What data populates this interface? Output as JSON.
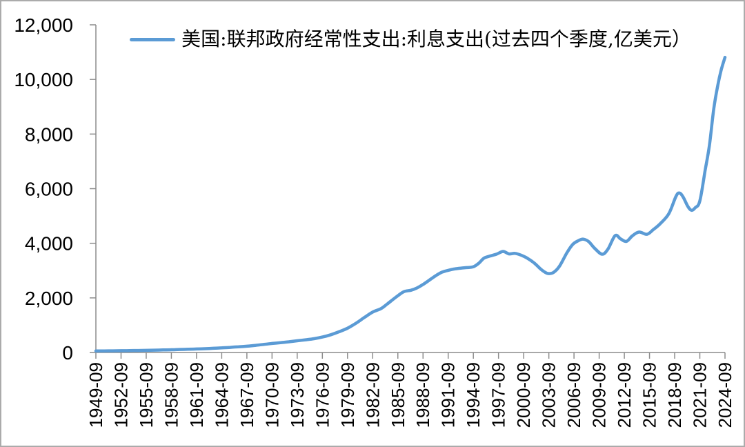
{
  "chart_data": {
    "type": "line",
    "title": "",
    "legend_position": "top-center",
    "grid": false,
    "background": "#ffffff",
    "series": [
      {
        "name": "美国:联邦政府经常性支出:利息支出(过去四个季度,亿美元）",
        "color": "#5B9BD5",
        "line_width": 4.5,
        "points": [
          [
            1949.75,
            55
          ],
          [
            1950.75,
            58
          ],
          [
            1951.75,
            61
          ],
          [
            1952.75,
            65
          ],
          [
            1953.75,
            70
          ],
          [
            1954.75,
            74
          ],
          [
            1955.75,
            78
          ],
          [
            1956.75,
            85
          ],
          [
            1957.75,
            93
          ],
          [
            1958.75,
            100
          ],
          [
            1959.75,
            110
          ],
          [
            1960.75,
            119
          ],
          [
            1961.75,
            128
          ],
          [
            1962.75,
            140
          ],
          [
            1963.75,
            153
          ],
          [
            1964.75,
            170
          ],
          [
            1965.75,
            188
          ],
          [
            1966.75,
            208
          ],
          [
            1967.75,
            230
          ],
          [
            1968.75,
            260
          ],
          [
            1969.75,
            295
          ],
          [
            1970.75,
            330
          ],
          [
            1971.75,
            360
          ],
          [
            1972.75,
            392
          ],
          [
            1973.75,
            430
          ],
          [
            1974.75,
            465
          ],
          [
            1975.75,
            505
          ],
          [
            1976.75,
            565
          ],
          [
            1977.75,
            650
          ],
          [
            1978.75,
            760
          ],
          [
            1979.75,
            890
          ],
          [
            1980.75,
            1070
          ],
          [
            1981.75,
            1280
          ],
          [
            1982.75,
            1480
          ],
          [
            1983.75,
            1610
          ],
          [
            1984.5,
            1780
          ],
          [
            1985.75,
            2080
          ],
          [
            1986.5,
            2230
          ],
          [
            1987.3,
            2280
          ],
          [
            1988.0,
            2360
          ],
          [
            1988.75,
            2490
          ],
          [
            1989.5,
            2650
          ],
          [
            1990.3,
            2820
          ],
          [
            1991.0,
            2940
          ],
          [
            1991.75,
            3010
          ],
          [
            1992.5,
            3060
          ],
          [
            1993.25,
            3090
          ],
          [
            1994.0,
            3110
          ],
          [
            1994.75,
            3140
          ],
          [
            1995.4,
            3270
          ],
          [
            1996.0,
            3450
          ],
          [
            1996.7,
            3530
          ],
          [
            1997.5,
            3600
          ],
          [
            1998.3,
            3700
          ],
          [
            1999.0,
            3610
          ],
          [
            1999.7,
            3630
          ],
          [
            2000.4,
            3570
          ],
          [
            2001.2,
            3450
          ],
          [
            2002.0,
            3280
          ],
          [
            2002.8,
            3050
          ],
          [
            2003.4,
            2920
          ],
          [
            2003.75,
            2890
          ],
          [
            2004.3,
            2930
          ],
          [
            2005.0,
            3150
          ],
          [
            2005.9,
            3650
          ],
          [
            2006.6,
            3960
          ],
          [
            2007.3,
            4100
          ],
          [
            2007.85,
            4150
          ],
          [
            2008.5,
            4060
          ],
          [
            2009.2,
            3820
          ],
          [
            2010.1,
            3600
          ],
          [
            2010.8,
            3790
          ],
          [
            2011.65,
            4280
          ],
          [
            2012.3,
            4160
          ],
          [
            2013.0,
            4070
          ],
          [
            2013.7,
            4270
          ],
          [
            2014.5,
            4410
          ],
          [
            2015.45,
            4330
          ],
          [
            2016.2,
            4500
          ],
          [
            2017.0,
            4710
          ],
          [
            2018.05,
            5080
          ],
          [
            2018.9,
            5715
          ],
          [
            2019.3,
            5840
          ],
          [
            2019.75,
            5700
          ],
          [
            2020.3,
            5360
          ],
          [
            2020.75,
            5210
          ],
          [
            2021.2,
            5300
          ],
          [
            2021.75,
            5550
          ],
          [
            2022.4,
            6700
          ],
          [
            2022.9,
            7600
          ],
          [
            2023.4,
            8900
          ],
          [
            2023.9,
            9800
          ],
          [
            2024.3,
            10350
          ],
          [
            2024.75,
            10810
          ]
        ]
      }
    ],
    "x_axis": {
      "range_years": [
        1949.75,
        2024.75
      ],
      "tick_labels": [
        "1949-09",
        "1952-09",
        "1955-09",
        "1958-09",
        "1961-09",
        "1964-09",
        "1967-09",
        "1970-09",
        "1973-09",
        "1976-09",
        "1979-09",
        "1982-09",
        "1985-09",
        "1988-09",
        "1991-09",
        "1994-09",
        "1997-09",
        "2000-09",
        "2003-09",
        "2006-09",
        "2009-09",
        "2012-09",
        "2015-09",
        "2018-09",
        "2021-09",
        "2024-09"
      ],
      "label_rotation_deg": -90
    },
    "y_axis": {
      "min": 0,
      "max": 12000,
      "step": 2000,
      "tick_labels": [
        "0",
        "2,000",
        "4,000",
        "6,000",
        "8,000",
        "10,000",
        "12,000"
      ]
    }
  },
  "styles": {
    "line_color": "#5B9BD5",
    "axis_color": "#8c8c8c",
    "text_color": "#000000",
    "border_color": "#ababab",
    "background": "#ffffff"
  }
}
